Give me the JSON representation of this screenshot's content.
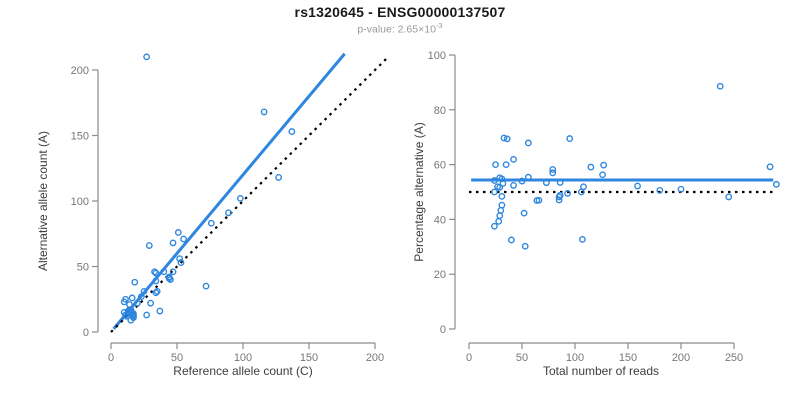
{
  "title": "rs1320645 - ENSG00000137507",
  "subtitle": {
    "text": "p-value: 2.65×10",
    "exponent": "-3"
  },
  "colors": {
    "accent_blue": "#2E86DE",
    "dotted_line": "#000000",
    "axis_line": "#8C8C8C",
    "tick_text": "#777777",
    "axis_label_text": "#3D3D3D",
    "title_text": "#1A1A1A",
    "subtitle_text": "#9A9A9A",
    "background": "#FFFFFF"
  },
  "chart_data": [
    {
      "type": "scatter",
      "title": "",
      "xlabel": "Reference allele count (C)",
      "ylabel": "Alternative allele count (A)",
      "xlim": [
        0,
        210
      ],
      "ylim": [
        0,
        215
      ],
      "xticks": [
        0,
        50,
        100,
        150,
        200
      ],
      "yticks": [
        0,
        50,
        100,
        150,
        200
      ],
      "grid": false,
      "legend": "none",
      "points": [
        [
          27,
          210
        ],
        [
          116,
          168
        ],
        [
          137,
          153
        ],
        [
          127,
          118
        ],
        [
          98,
          102
        ],
        [
          89,
          91
        ],
        [
          76,
          83
        ],
        [
          51,
          76
        ],
        [
          55,
          71
        ],
        [
          47,
          68
        ],
        [
          29,
          66
        ],
        [
          52,
          56
        ],
        [
          53,
          53
        ],
        [
          33,
          46
        ],
        [
          40,
          46
        ],
        [
          44,
          42
        ],
        [
          34,
          45
        ],
        [
          45,
          40
        ],
        [
          44,
          41
        ],
        [
          72,
          35
        ],
        [
          18,
          38
        ],
        [
          35,
          31
        ],
        [
          34,
          30
        ],
        [
          47,
          46
        ],
        [
          23,
          27
        ],
        [
          25,
          31
        ],
        [
          34,
          39
        ],
        [
          10,
          23
        ],
        [
          11,
          25
        ],
        [
          16,
          26
        ],
        [
          14,
          21
        ],
        [
          10,
          15
        ],
        [
          11,
          13
        ],
        [
          13,
          16
        ],
        [
          14,
          17
        ],
        [
          15,
          17
        ],
        [
          14,
          15
        ],
        [
          13,
          14
        ],
        [
          12,
          12
        ],
        [
          16,
          15
        ],
        [
          17,
          14
        ],
        [
          17,
          13
        ],
        [
          17,
          12
        ],
        [
          17,
          11
        ],
        [
          30,
          22
        ],
        [
          27,
          13
        ],
        [
          37,
          16
        ],
        [
          15,
          9
        ],
        [
          20,
          22
        ]
      ],
      "lines": [
        {
          "name": "fitted-regression-line",
          "style": "solid",
          "slope": 1.2,
          "intercept": 0,
          "x_start": 2,
          "x_end": 177
        },
        {
          "name": "identity-line",
          "style": "dotted",
          "slope": 1.0,
          "intercept": 0,
          "x_start": 0,
          "x_end": 210
        }
      ]
    },
    {
      "type": "scatter",
      "title": "",
      "xlabel": "Total number of reads",
      "ylabel": "Percentage alternative (A)",
      "xlim": [
        0,
        295
      ],
      "ylim": [
        0,
        100
      ],
      "xticks": [
        0,
        50,
        100,
        150,
        200,
        250
      ],
      "yticks": [
        0,
        20,
        40,
        60,
        80,
        100
      ],
      "grid": false,
      "legend": "none",
      "points": [
        [
          237,
          88.6
        ],
        [
          284,
          59.2
        ],
        [
          290,
          52.8
        ],
        [
          245,
          48.2
        ],
        [
          200,
          51.0
        ],
        [
          180,
          50.6
        ],
        [
          159,
          52.2
        ],
        [
          127,
          59.8
        ],
        [
          126,
          56.3
        ],
        [
          115,
          59.1
        ],
        [
          95,
          69.5
        ],
        [
          108,
          51.9
        ],
        [
          106,
          50.0
        ],
        [
          79,
          58.2
        ],
        [
          86,
          53.5
        ],
        [
          86,
          48.8
        ],
        [
          79,
          57.0
        ],
        [
          85,
          47.1
        ],
        [
          85,
          48.2
        ],
        [
          107,
          32.7
        ],
        [
          56,
          67.9
        ],
        [
          66,
          47.0
        ],
        [
          64,
          46.9
        ],
        [
          93,
          49.5
        ],
        [
          50,
          54.0
        ],
        [
          56,
          55.4
        ],
        [
          73,
          53.4
        ],
        [
          33,
          69.7
        ],
        [
          36,
          69.4
        ],
        [
          42,
          61.9
        ],
        [
          35,
          60.0
        ],
        [
          25,
          60.0
        ],
        [
          24,
          54.2
        ],
        [
          29,
          55.2
        ],
        [
          31,
          54.8
        ],
        [
          32,
          53.1
        ],
        [
          29,
          51.7
        ],
        [
          27,
          51.9
        ],
        [
          24,
          50.0
        ],
        [
          31,
          48.4
        ],
        [
          31,
          45.2
        ],
        [
          30,
          43.3
        ],
        [
          29,
          41.4
        ],
        [
          28,
          39.3
        ],
        [
          52,
          42.3
        ],
        [
          40,
          32.5
        ],
        [
          53,
          30.2
        ],
        [
          24,
          37.5
        ],
        [
          42,
          52.4
        ]
      ],
      "lines": [
        {
          "name": "mean-percentage-line",
          "style": "solid",
          "slope": 0,
          "intercept": 54.4,
          "x_start": 2,
          "x_end": 287
        },
        {
          "name": "expected-50-line",
          "style": "dotted",
          "slope": 0,
          "intercept": 50,
          "x_start": 0,
          "x_end": 288
        }
      ]
    }
  ]
}
